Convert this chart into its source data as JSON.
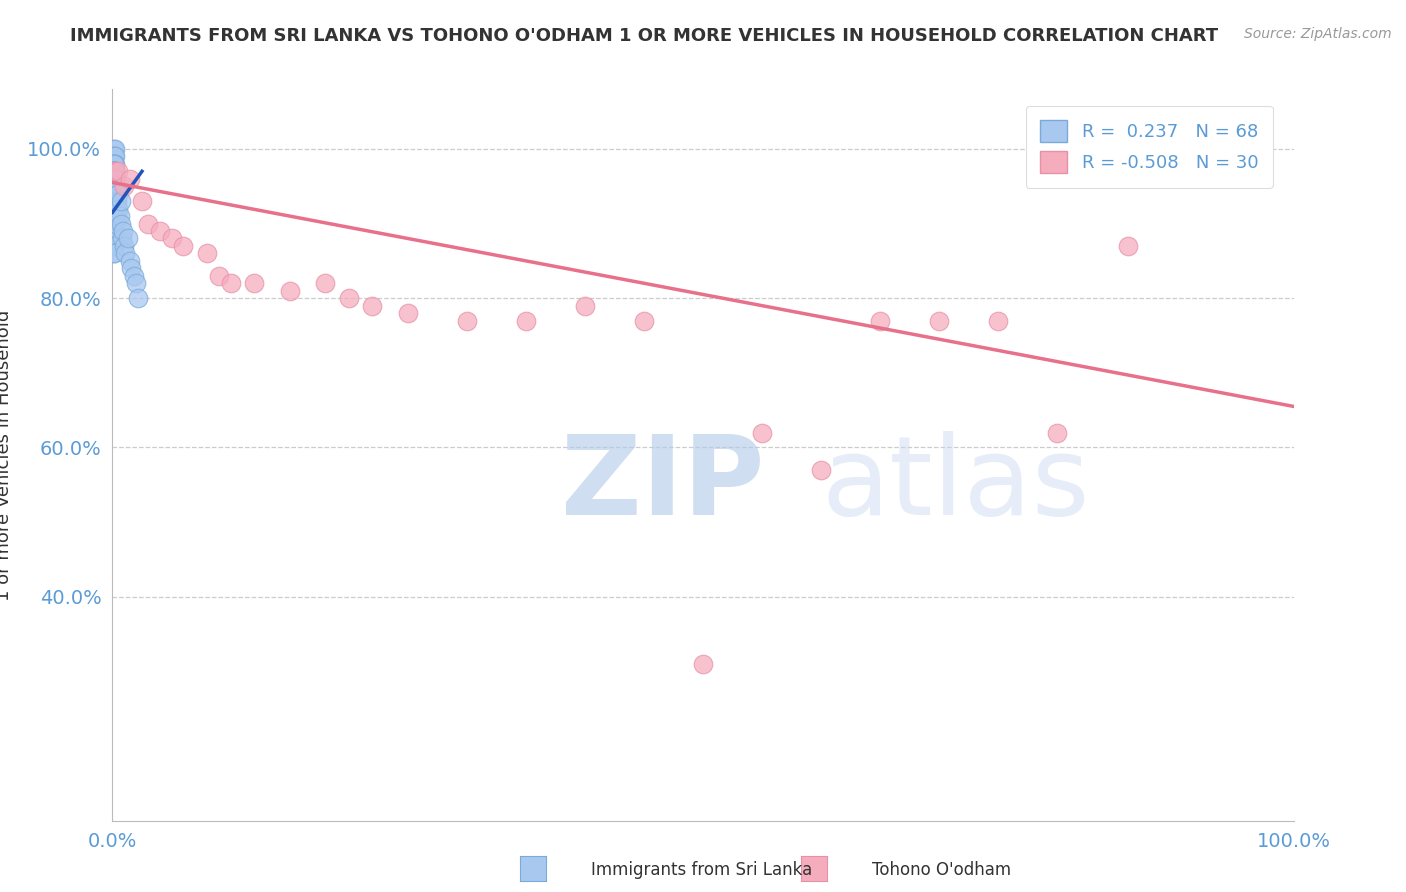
{
  "title": "IMMIGRANTS FROM SRI LANKA VS TOHONO O'ODHAM 1 OR MORE VEHICLES IN HOUSEHOLD CORRELATION CHART",
  "source_text": "Source: ZipAtlas.com",
  "ylabel": "1 or more Vehicles in Household",
  "watermark_zip": "ZIP",
  "watermark_atlas": "atlas",
  "xlim": [
    0.0,
    1.0
  ],
  "ylim": [
    0.1,
    1.08
  ],
  "blue_r": 0.237,
  "blue_n": 68,
  "pink_r": -0.508,
  "pink_n": 30,
  "blue_color": "#A8C8F0",
  "pink_color": "#F5ADBE",
  "blue_edge_color": "#7AAAD8",
  "pink_edge_color": "#E890A8",
  "blue_line_color": "#2255BB",
  "pink_line_color": "#E8708A",
  "legend_label_blue": "Immigrants from Sri Lanka",
  "legend_label_pink": "Tohono O'odham",
  "blue_scatter_x": [
    0.001,
    0.002,
    0.001,
    0.001,
    0.002,
    0.001,
    0.001,
    0.002,
    0.001,
    0.001,
    0.001,
    0.001,
    0.001,
    0.001,
    0.002,
    0.001,
    0.001,
    0.001,
    0.001,
    0.001,
    0.001,
    0.001,
    0.001,
    0.001,
    0.001,
    0.001,
    0.001,
    0.001,
    0.001,
    0.001,
    0.001,
    0.001,
    0.001,
    0.001,
    0.001,
    0.001,
    0.001,
    0.001,
    0.001,
    0.001,
    0.001,
    0.001,
    0.002,
    0.002,
    0.002,
    0.002,
    0.003,
    0.003,
    0.003,
    0.003,
    0.004,
    0.004,
    0.004,
    0.005,
    0.005,
    0.006,
    0.007,
    0.007,
    0.008,
    0.009,
    0.01,
    0.011,
    0.013,
    0.015,
    0.016,
    0.018,
    0.02,
    0.022
  ],
  "blue_scatter_y": [
    1.0,
    1.0,
    0.99,
    0.99,
    0.99,
    0.98,
    0.98,
    0.98,
    0.98,
    0.97,
    0.97,
    0.97,
    0.97,
    0.97,
    0.97,
    0.96,
    0.96,
    0.96,
    0.96,
    0.95,
    0.95,
    0.95,
    0.95,
    0.94,
    0.94,
    0.94,
    0.93,
    0.93,
    0.92,
    0.92,
    0.91,
    0.91,
    0.9,
    0.9,
    0.89,
    0.89,
    0.88,
    0.88,
    0.87,
    0.87,
    0.86,
    0.86,
    0.97,
    0.96,
    0.95,
    0.93,
    0.96,
    0.94,
    0.92,
    0.9,
    0.95,
    0.93,
    0.91,
    0.94,
    0.92,
    0.91,
    0.93,
    0.9,
    0.88,
    0.89,
    0.87,
    0.86,
    0.88,
    0.85,
    0.84,
    0.83,
    0.82,
    0.8
  ],
  "pink_scatter_x": [
    0.002,
    0.005,
    0.01,
    0.015,
    0.025,
    0.03,
    0.04,
    0.05,
    0.06,
    0.08,
    0.09,
    0.1,
    0.12,
    0.15,
    0.18,
    0.2,
    0.22,
    0.25,
    0.3,
    0.35,
    0.4,
    0.45,
    0.5,
    0.55,
    0.6,
    0.65,
    0.7,
    0.75,
    0.8,
    0.86
  ],
  "pink_scatter_y": [
    0.97,
    0.97,
    0.95,
    0.96,
    0.93,
    0.9,
    0.89,
    0.88,
    0.87,
    0.86,
    0.83,
    0.82,
    0.82,
    0.81,
    0.82,
    0.8,
    0.79,
    0.78,
    0.77,
    0.77,
    0.79,
    0.77,
    0.31,
    0.62,
    0.57,
    0.77,
    0.77,
    0.77,
    0.62,
    0.87
  ],
  "blue_trend_x0": 0.0,
  "blue_trend_x1": 0.025,
  "blue_trend_y0": 0.915,
  "blue_trend_y1": 0.97,
  "pink_trend_x0": 0.0,
  "pink_trend_x1": 1.0,
  "pink_trend_y0": 0.955,
  "pink_trend_y1": 0.655,
  "yticks": [
    0.4,
    0.6,
    0.8,
    1.0
  ],
  "ytick_labels": [
    "40.0%",
    "60.0%",
    "80.0%",
    "100.0%"
  ],
  "xticks": [
    0.0,
    1.0
  ],
  "xtick_labels": [
    "0.0%",
    "100.0%"
  ],
  "background_color": "#FFFFFF",
  "grid_color": "#CCCCCC",
  "tick_color": "#5B9BD5",
  "title_color": "#333333",
  "source_color": "#999999"
}
